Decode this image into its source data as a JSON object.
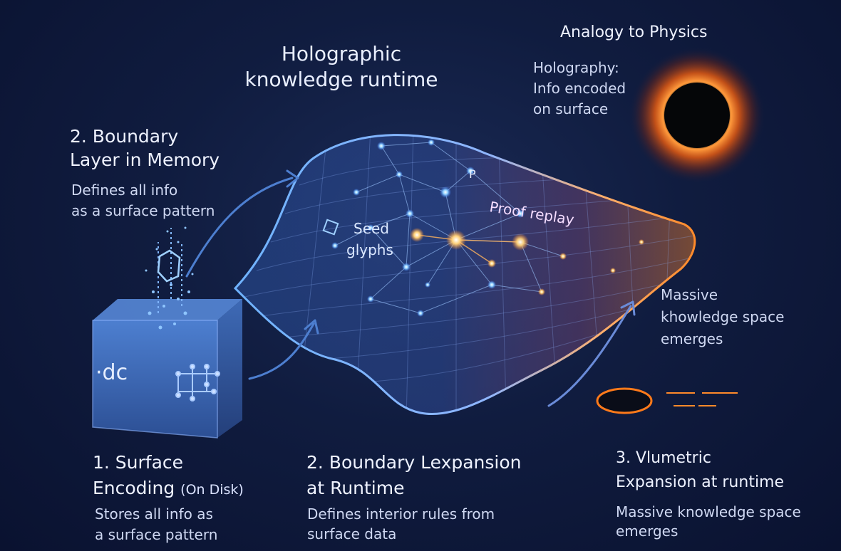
{
  "header": {
    "title_line1": "Holographic",
    "title_line2": "knowledge runtime"
  },
  "physics": {
    "heading": "Analogy to Physics",
    "line1": "Holography:",
    "line2": "Info encoded",
    "line3": "on surface"
  },
  "boundary_memory": {
    "title_line1": "2. Boundary",
    "title_line2": "Layer in Memory",
    "desc_line1": "Defines all info",
    "desc_line2": "as a surface pattern"
  },
  "membrane": {
    "seed_line1": "Seed",
    "seed_line2": "glyphs",
    "proof_label": "Proof replay",
    "p_label": "P"
  },
  "cube": {
    "label": "·dc"
  },
  "massive_right": {
    "line1": "Massive",
    "line2": "khowledge space",
    "line3": "emerges"
  },
  "step1": {
    "title_line1": "1. Surface",
    "title_line2": "Encoding",
    "title_paren": "(On Disk)",
    "desc_line1": "Stores all info as",
    "desc_line2": "a surface pattern"
  },
  "step2": {
    "title_line1": "2. Boundary Lexpansion",
    "title_line2": "at Runtime",
    "desc_line1": "Defines interior rules from",
    "desc_line2": "surface data"
  },
  "step3": {
    "title_line1": "3. Vlumetric",
    "title_line2": "Expansion at runtime",
    "desc_line1": "Massive knowledge space",
    "desc_line2": "emerges"
  },
  "colors": {
    "background": "#101c3f",
    "membrane_blue": "#5fa8ff",
    "membrane_orange": "#ff9a3c",
    "cube_blue": "#3e6fc2",
    "black_hole_ring": "#ff7a1a"
  }
}
